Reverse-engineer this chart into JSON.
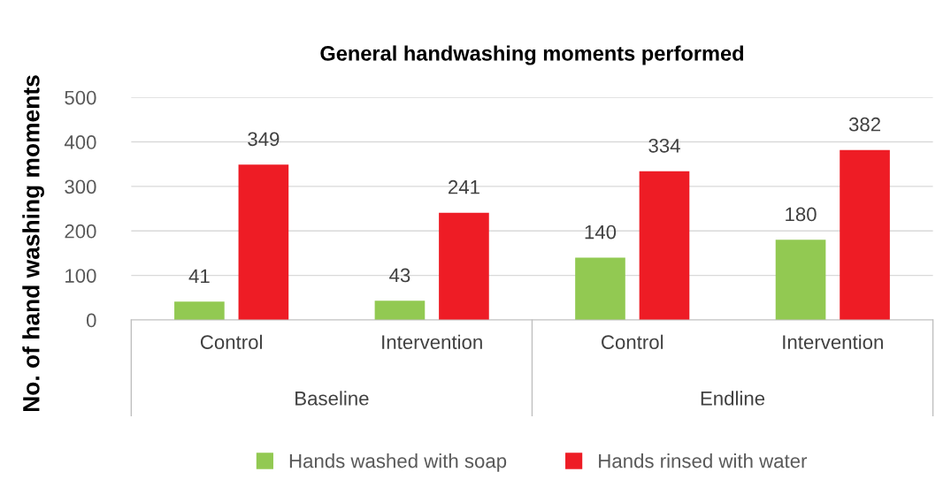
{
  "chart_data": {
    "type": "bar",
    "title": "General handwashing moments performed",
    "ylabel": "No. of hand washing moments",
    "categories": [
      "Control",
      "Intervention",
      "Control",
      "Intervention"
    ],
    "series": [
      {
        "name": "Hands washed with soap",
        "color": "#92c952",
        "values": [
          41,
          43,
          140,
          180
        ]
      },
      {
        "name": "Hands rinsed with water",
        "color": "#ee1c25",
        "values": [
          349,
          241,
          334,
          382
        ]
      }
    ],
    "annotations": [
      "Baseline",
      "Endline"
    ],
    "ylim": [
      0,
      500
    ],
    "yticks": [
      0,
      100,
      200,
      300,
      400,
      500
    ],
    "grid": "y",
    "legend": "bottom",
    "data_labels": true
  }
}
